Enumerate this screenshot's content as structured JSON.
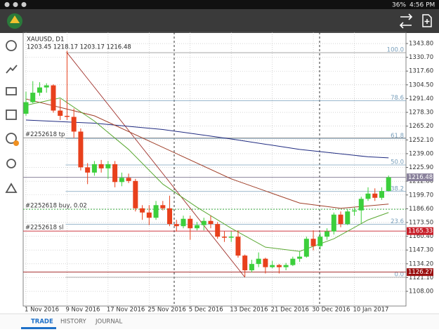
{
  "status_bar": {
    "battery": "36%",
    "time": "4:56 PM"
  },
  "tabs": [
    "TRADE",
    "HISTORY",
    "JOURNAL"
  ],
  "chart_data": {
    "type": "candlestick",
    "title": "XAUUSD, D1",
    "subtitle": "1203.45 1218.17 1203.17 1216.48",
    "up_color": "#3ccf3c",
    "down_color": "#e8401c",
    "grid": true,
    "categories": [
      "1 Nov 2016",
      null,
      null,
      null,
      null,
      null,
      "9 Nov 2016",
      null,
      null,
      null,
      null,
      null,
      "17 Nov 2016",
      null,
      null,
      null,
      null,
      null,
      "25 Nov 2016",
      null,
      null,
      null,
      null,
      null,
      "5 Dec 2016",
      null,
      null,
      null,
      null,
      null,
      "13 Dec 2016",
      null,
      null,
      null,
      null,
      null,
      "21 Dec 2016",
      null,
      null,
      null,
      null,
      null,
      "30 Dec 2016",
      null,
      null,
      null,
      null,
      null,
      "10 Jan 2017",
      null,
      null,
      null,
      null,
      null
    ],
    "candles": [
      [
        1277,
        1298,
        1275,
        1288
      ],
      [
        1288,
        1308,
        1287,
        1297
      ],
      [
        1297,
        1307,
        1294,
        1302
      ],
      [
        1302,
        1306,
        1297,
        1304
      ],
      [
        1304,
        1305,
        1278,
        1280
      ],
      [
        1280,
        1291,
        1271,
        1275
      ],
      [
        1275,
        1337,
        1271,
        1274
      ],
      [
        1274,
        1282,
        1254,
        1260
      ],
      [
        1260,
        1263,
        1223,
        1226
      ],
      [
        1226,
        1230,
        1210,
        1221
      ],
      [
        1221,
        1232,
        1218,
        1229
      ],
      [
        1229,
        1233,
        1221,
        1225
      ],
      [
        1225,
        1232,
        1215,
        1229
      ],
      [
        1229,
        1232,
        1207,
        1212
      ],
      [
        1212,
        1221,
        1208,
        1216
      ],
      [
        1216,
        1220,
        1211,
        1213
      ],
      [
        1213,
        1215,
        1184,
        1187
      ],
      [
        1187,
        1190,
        1176,
        1183
      ],
      [
        1183,
        1190,
        1171,
        1178
      ],
      [
        1178,
        1194,
        1176,
        1190
      ],
      [
        1190,
        1194,
        1185,
        1187
      ],
      [
        1187,
        1199,
        1170,
        1172
      ],
      [
        1172,
        1176,
        1165,
        1170
      ],
      [
        1170,
        1180,
        1168,
        1177
      ],
      [
        1177,
        1180,
        1157,
        1168
      ],
      [
        1168,
        1174,
        1166,
        1171
      ],
      [
        1171,
        1178,
        1166,
        1175
      ],
      [
        1175,
        1180,
        1168,
        1172
      ],
      [
        1172,
        1174,
        1158,
        1160
      ],
      [
        1160,
        1165,
        1155,
        1159
      ],
      [
        1159,
        1165,
        1155,
        1160
      ],
      [
        1160,
        1166,
        1140,
        1142
      ],
      [
        1142,
        1143,
        1122,
        1128
      ],
      [
        1128,
        1138,
        1126,
        1134
      ],
      [
        1134,
        1145,
        1131,
        1139
      ],
      [
        1139,
        1140,
        1125,
        1131
      ],
      [
        1131,
        1137,
        1130,
        1133
      ],
      [
        1133,
        1134,
        1125,
        1131
      ],
      [
        1131,
        1135,
        1128,
        1133
      ],
      [
        1133,
        1141,
        1132,
        1139
      ],
      [
        1139,
        1146,
        1136,
        1141
      ],
      [
        1141,
        1160,
        1140,
        1158
      ],
      [
        1158,
        1166,
        1147,
        1151
      ],
      [
        1151,
        1164,
        1148,
        1160
      ],
      [
        1160,
        1168,
        1157,
        1165
      ],
      [
        1165,
        1183,
        1162,
        1181
      ],
      [
        1181,
        1184,
        1169,
        1172
      ],
      [
        1172,
        1186,
        1171,
        1184
      ],
      [
        1184,
        1188,
        1180,
        1185
      ],
      [
        1185,
        1198,
        1173,
        1196
      ],
      [
        1196,
        1207,
        1194,
        1201
      ],
      [
        1201,
        1206,
        1194,
        1197
      ],
      [
        1197,
        1207,
        1195,
        1203.45
      ],
      [
        1203.45,
        1218.17,
        1203.17,
        1216.48
      ]
    ],
    "ylim": [
      1094,
      1354.5
    ],
    "yticks": [
      {
        "value": 1343.8,
        "label": "1343.80"
      },
      {
        "value": 1330.7,
        "label": "1330.70"
      },
      {
        "value": 1317.6,
        "label": "1317.60"
      },
      {
        "value": 1304.5,
        "label": "1304.50"
      },
      {
        "value": 1291.4,
        "label": "1291.40"
      },
      {
        "value": 1278.3,
        "label": "1278.30"
      },
      {
        "value": 1265.2,
        "label": "1265.20"
      },
      {
        "value": 1252.1,
        "label": "1252.10"
      },
      {
        "value": 1239,
        "label": "1239.00"
      },
      {
        "value": 1225.9,
        "label": "1225.90"
      },
      {
        "value": 1212.8,
        "label": "1212.80"
      },
      {
        "value": 1199.7,
        "label": "1199.70"
      },
      {
        "value": 1186.6,
        "label": "1186.60"
      },
      {
        "value": 1173.5,
        "label": "1173.50"
      },
      {
        "value": 1160.4,
        "label": "1160.40"
      },
      {
        "value": 1147.3,
        "label": "1147.30"
      },
      {
        "value": 1134.2,
        "label": "1134.20"
      },
      {
        "value": 1121.1,
        "label": "1121.10"
      },
      {
        "value": 1108,
        "label": "1108.00"
      }
    ],
    "indicators": [
      {
        "color": "#1f2a80",
        "x": [
          0,
          10,
          20,
          30,
          40,
          50,
          53
        ],
        "values": [
          1271,
          1268,
          1262,
          1253,
          1243,
          1236,
          1235
        ]
      },
      {
        "color": "#a0402a",
        "x": [
          0,
          10,
          20,
          30,
          40,
          46,
          53
        ],
        "values": [
          1291,
          1275,
          1245,
          1215,
          1192,
          1187,
          1191
        ]
      },
      {
        "color": "#5aa832",
        "x": [
          0,
          5,
          10,
          15,
          20,
          25,
          30,
          35,
          40,
          45,
          50,
          53
        ],
        "values": [
          1285,
          1292,
          1270,
          1243,
          1210,
          1188,
          1168,
          1150,
          1146,
          1158,
          1176,
          1183
        ]
      }
    ],
    "fibo": {
      "color": "#7aa0bc",
      "trend_color": "#a0302a",
      "from": [
        6,
        1335.1
      ],
      "to": [
        32,
        1121.4
      ],
      "levels": [
        {
          "value": 100,
          "label": "100.0"
        },
        {
          "value": 78.6,
          "label": "78.6"
        },
        {
          "value": 61.8,
          "label": "61.8"
        },
        {
          "value": 50,
          "label": "50.0"
        },
        {
          "value": 38.2,
          "label": "38.2"
        },
        {
          "value": 23.6,
          "label": "23.6"
        },
        {
          "value": 0,
          "label": "0.0"
        }
      ]
    },
    "price_lines": [
      {
        "label": "#2252618 tp",
        "value": 1254,
        "color": "#909090"
      },
      {
        "label": "#2252618 buy, 0.02",
        "value": 1186.1,
        "color": "#3cb043",
        "dashed": true
      },
      {
        "label": "#2252618 sl",
        "value": 1165.33,
        "color": "#c8202a",
        "tag": true
      },
      {
        "value": 1126.27,
        "color": "#9a1010",
        "tag": true
      },
      {
        "value": 1216.48,
        "color": "#8a829c",
        "tag": true
      }
    ]
  }
}
